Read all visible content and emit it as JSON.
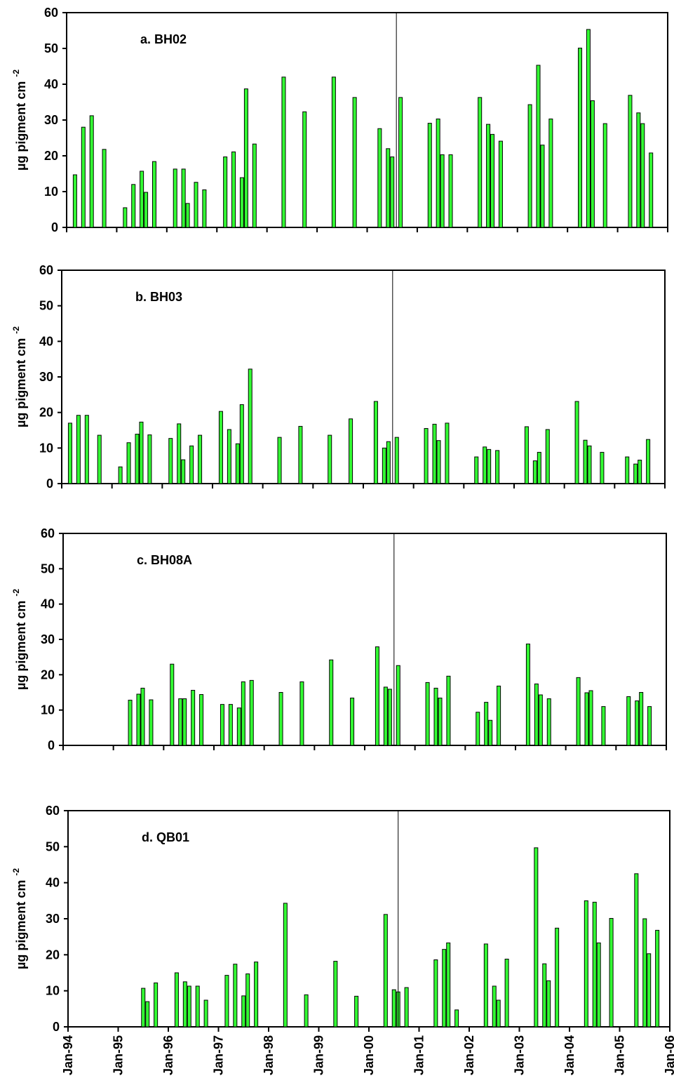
{
  "chart_data": [
    {
      "type": "bar",
      "title": "a. BH02",
      "ylabel": "µg pigment cm",
      "ylabel_exponent": "-2",
      "color": "#33ff33",
      "event_x": "2000-08",
      "x": [
        "1994-03",
        "1994-05",
        "1994-07",
        "1994-10",
        "1995-03",
        "1995-05",
        "1995-07",
        "1995-08",
        "1995-10",
        "1996-03",
        "1996-05",
        "1996-06",
        "1996-08",
        "1996-10",
        "1997-03",
        "1997-05",
        "1997-07",
        "1997-08",
        "1997-10",
        "1998-05",
        "1998-10",
        "1999-05",
        "1999-10",
        "2000-04",
        "2000-06",
        "2000-07",
        "2000-09",
        "2001-04",
        "2001-06",
        "2001-07",
        "2001-09",
        "2002-04",
        "2002-06",
        "2002-07",
        "2002-09",
        "2003-04",
        "2003-06",
        "2003-07",
        "2003-09",
        "2004-04",
        "2004-06",
        "2004-07",
        "2004-10",
        "2005-04",
        "2005-06",
        "2005-07",
        "2005-09"
      ],
      "values": [
        14.7,
        28,
        31.2,
        21.8,
        5.5,
        12,
        15.7,
        9.8,
        18.4,
        16.3,
        16.3,
        6.7,
        12.6,
        10.5,
        19.7,
        21.1,
        13.9,
        38.7,
        23.3,
        42,
        32.3,
        42,
        36.3,
        27.6,
        22,
        19.7,
        36.3,
        29.1,
        30.3,
        20.3,
        20.3,
        36.3,
        28.8,
        26,
        24.1,
        34.3,
        45.3,
        23,
        30.3,
        50.1,
        55.3,
        35.4,
        29,
        36.9,
        32,
        29,
        20.8
      ],
      "xlim": [
        "1994-01",
        "2006-01"
      ],
      "xticks": [
        "1994-01",
        "1995-01",
        "1996-01",
        "1997-01",
        "1998-01",
        "1999-01",
        "2000-01",
        "2001-01",
        "2002-01",
        "2003-01",
        "2004-01",
        "2005-01",
        "2006-01"
      ],
      "ylim": [
        0,
        60
      ],
      "yticks": [
        0,
        10,
        20,
        30,
        40,
        50,
        60
      ]
    },
    {
      "type": "bar",
      "title": "b. BH03",
      "ylabel": "µg pigment cm",
      "ylabel_exponent": "-2",
      "color": "#33ff33",
      "event_x": "2000-08",
      "x": [
        "1994-03",
        "1994-05",
        "1994-07",
        "1994-10",
        "1995-03",
        "1995-05",
        "1995-07",
        "1995-08",
        "1995-10",
        "1996-03",
        "1996-05",
        "1996-06",
        "1996-08",
        "1996-10",
        "1997-03",
        "1997-05",
        "1997-07",
        "1997-08",
        "1997-10",
        "1998-05",
        "1998-10",
        "1999-05",
        "1999-10",
        "2000-04",
        "2000-06",
        "2000-07",
        "2000-09",
        "2001-04",
        "2001-06",
        "2001-07",
        "2001-09",
        "2002-04",
        "2002-06",
        "2002-07",
        "2002-09",
        "2003-04",
        "2003-06",
        "2003-07",
        "2003-09",
        "2004-04",
        "2004-06",
        "2004-07",
        "2004-10",
        "2005-04",
        "2005-06",
        "2005-07",
        "2005-09"
      ],
      "values": [
        17,
        19.2,
        19.2,
        13.6,
        4.7,
        11.5,
        13.9,
        17.3,
        13.7,
        12.7,
        16.8,
        6.7,
        10.6,
        13.6,
        20.3,
        15.2,
        11.2,
        22.2,
        32.2,
        13,
        16.1,
        13.6,
        18.2,
        23.1,
        10,
        11.8,
        13,
        15.5,
        16.7,
        12.1,
        17,
        7.5,
        10.3,
        9.6,
        9.3,
        16,
        6.4,
        8.8,
        15.2,
        23.1,
        12.2,
        10.6,
        8.8,
        7.5,
        5.5,
        6.6,
        12.4
      ],
      "xlim": [
        "1994-01",
        "2006-01"
      ],
      "xticks": [
        "1994-01",
        "1995-01",
        "1996-01",
        "1997-01",
        "1998-01",
        "1999-01",
        "2000-01",
        "2001-01",
        "2002-01",
        "2003-01",
        "2004-01",
        "2005-01",
        "2006-01"
      ],
      "ylim": [
        0,
        60
      ],
      "yticks": [
        0,
        10,
        20,
        30,
        40,
        50,
        60
      ]
    },
    {
      "type": "bar",
      "title": "c. BH08A",
      "ylabel": "µg pigment cm",
      "ylabel_exponent": "-2",
      "color": "#33ff33",
      "event_x": "2000-08",
      "x": [
        "1995-05",
        "1995-07",
        "1995-08",
        "1995-10",
        "1996-03",
        "1996-05",
        "1996-06",
        "1996-08",
        "1996-10",
        "1997-03",
        "1997-05",
        "1997-07",
        "1997-08",
        "1997-10",
        "1998-05",
        "1998-10",
        "1999-05",
        "1999-10",
        "2000-04",
        "2000-06",
        "2000-07",
        "2000-09",
        "2001-04",
        "2001-06",
        "2001-07",
        "2001-09",
        "2002-04",
        "2002-06",
        "2002-07",
        "2002-09",
        "2003-04",
        "2003-06",
        "2003-07",
        "2003-09",
        "2004-04",
        "2004-06",
        "2004-07",
        "2004-10",
        "2005-04",
        "2005-06",
        "2005-07",
        "2005-09"
      ],
      "values": [
        12.8,
        14.5,
        16.2,
        12.9,
        23,
        13.2,
        13.2,
        15.6,
        14.4,
        11.6,
        11.6,
        10.6,
        18,
        18.4,
        15,
        18,
        24.2,
        13.4,
        27.9,
        16.5,
        15.9,
        22.6,
        17.8,
        16.2,
        13.4,
        19.6,
        9.4,
        12.2,
        7.1,
        16.8,
        28.7,
        17.4,
        14.3,
        13.2,
        19.2,
        14.9,
        15.5,
        11,
        13.8,
        12.6,
        15,
        11
      ],
      "xlim": [
        "1994-01",
        "2006-01"
      ],
      "xticks": [
        "1994-01",
        "1995-01",
        "1996-01",
        "1997-01",
        "1998-01",
        "1999-01",
        "2000-01",
        "2001-01",
        "2002-01",
        "2003-01",
        "2004-01",
        "2005-01",
        "2006-01"
      ],
      "ylim": [
        0,
        60
      ],
      "yticks": [
        0,
        10,
        20,
        30,
        40,
        50,
        60
      ]
    },
    {
      "type": "bar",
      "title": "d. QB01",
      "ylabel": "µg pigment cm",
      "ylabel_exponent": "-2",
      "color": "#33ff33",
      "event_x": "2000-08",
      "x": [
        "1995-07",
        "1995-08",
        "1995-10",
        "1996-03",
        "1996-05",
        "1996-06",
        "1996-08",
        "1996-10",
        "1997-03",
        "1997-05",
        "1997-07",
        "1997-08",
        "1997-10",
        "1998-05",
        "1998-10",
        "1999-05",
        "1999-10",
        "2000-05",
        "2000-07",
        "2000-08",
        "2000-10",
        "2001-05",
        "2001-07",
        "2001-08",
        "2001-10",
        "2002-05",
        "2002-07",
        "2002-08",
        "2002-10",
        "2003-05",
        "2003-07",
        "2003-08",
        "2003-10",
        "2004-05",
        "2004-07",
        "2004-08",
        "2004-11",
        "2005-05",
        "2005-07",
        "2005-08",
        "2005-10"
      ],
      "values": [
        10.7,
        7,
        12.2,
        15,
        12.5,
        11.3,
        11.3,
        7.4,
        14.3,
        17.4,
        8.6,
        14.7,
        18,
        34.3,
        8.9,
        18.2,
        8.5,
        31.2,
        10.3,
        9.7,
        10.9,
        18.6,
        21.5,
        23.3,
        4.7,
        23,
        11.3,
        7.4,
        18.8,
        49.7,
        17.5,
        12.8,
        27.4,
        35,
        34.6,
        23.3,
        30.1,
        42.5,
        30,
        20.3,
        26.8
      ],
      "xlim": [
        "1994-01",
        "2006-01"
      ],
      "xticks": [
        {
          "value": "1994-01",
          "label": "Jan-94"
        },
        {
          "value": "1995-01",
          "label": "Jan-95"
        },
        {
          "value": "1996-01",
          "label": "Jan-96"
        },
        {
          "value": "1997-01",
          "label": "Jan-97"
        },
        {
          "value": "1998-01",
          "label": "Jan-98"
        },
        {
          "value": "1999-01",
          "label": "Jan-99"
        },
        {
          "value": "2000-01",
          "label": "Jan-00"
        },
        {
          "value": "2001-01",
          "label": "Jan-01"
        },
        {
          "value": "2002-01",
          "label": "Jan-02"
        },
        {
          "value": "2003-01",
          "label": "Jan-03"
        },
        {
          "value": "2004-01",
          "label": "Jan-04"
        },
        {
          "value": "2005-01",
          "label": "Jan-05"
        },
        {
          "value": "2006-01",
          "label": "Jan-06"
        }
      ],
      "ylim": [
        0,
        60
      ],
      "yticks": [
        0,
        10,
        20,
        30,
        40,
        50,
        60
      ]
    }
  ]
}
